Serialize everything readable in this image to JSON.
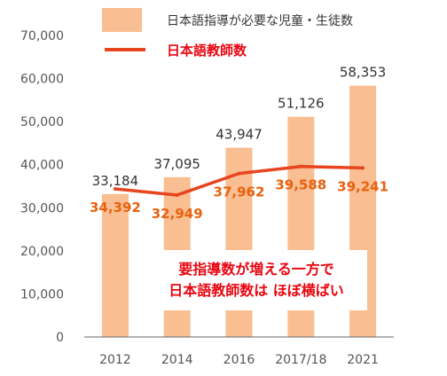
{
  "colors": {
    "bar": "#F9BE92",
    "line": "#E8451E",
    "line_label": "#E8620F",
    "annotation": "#E8050F",
    "axis": "#666666"
  },
  "legend": {
    "bar_label": "日本語指導が必要な児童・生徒数",
    "line_label": "日本語教師数"
  },
  "annotation": {
    "line1": "要指導数が増える一方で",
    "line2": "日本語教師数は ほぼ横ばい"
  },
  "chart_data": {
    "type": "bar",
    "categories": [
      "2012",
      "2014",
      "2016",
      "2017/18",
      "2021"
    ],
    "series": [
      {
        "name": "日本語指導が必要な児童・生徒数",
        "type": "bar",
        "values": [
          33184,
          37095,
          43947,
          51126,
          58353
        ],
        "labels": [
          "33,184",
          "37,095",
          "43,947",
          "51,126",
          "58,353"
        ]
      },
      {
        "name": "日本語教師数",
        "type": "line",
        "values": [
          34392,
          32949,
          37962,
          39588,
          39241
        ],
        "labels": [
          "34,392",
          "32,949",
          "37,962",
          "39,588",
          "39,241"
        ]
      }
    ],
    "ylim": [
      0,
      70000
    ],
    "yticks": [
      "0",
      "10,000",
      "20,000",
      "30,000",
      "40,000",
      "50,000",
      "60,000",
      "70,000"
    ],
    "grid": false,
    "legend_position": "top"
  }
}
